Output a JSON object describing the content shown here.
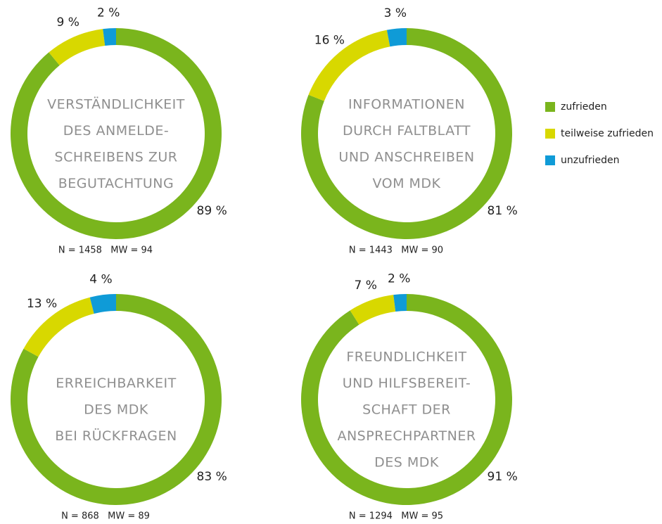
{
  "legend": {
    "labels": [
      "zufrieden",
      "teilweise zufrieden",
      "unzufrieden"
    ],
    "colors": [
      "#7ab51d",
      "#d8d800",
      "#0f9bd7"
    ]
  },
  "chart_data": [
    {
      "type": "pie",
      "donut": true,
      "title": [
        "VERSTÄNDLICHKEIT",
        "DES ANMELDE-",
        "SCHREIBENS ZUR",
        "BEGUTACHTUNG"
      ],
      "values": [
        89,
        9,
        2
      ],
      "value_labels": [
        "89 %",
        "9 %",
        "2 %"
      ],
      "note": "N = 1458   MW = 94"
    },
    {
      "type": "pie",
      "donut": true,
      "title": [
        "INFORMATIONEN",
        "DURCH FALTBLATT",
        "UND ANSCHREIBEN",
        "VOM MDK"
      ],
      "values": [
        81,
        16,
        3
      ],
      "value_labels": [
        "81 %",
        "16 %",
        "3 %"
      ],
      "note": "N = 1443   MW = 90"
    },
    {
      "type": "pie",
      "donut": true,
      "title": [
        "ERREICHBARKEIT",
        "DES MDK",
        "BEI RÜCKFRAGEN"
      ],
      "values": [
        83,
        13,
        4
      ],
      "value_labels": [
        "83 %",
        "13 %",
        "4 %"
      ],
      "note": "N = 868   MW = 89"
    },
    {
      "type": "pie",
      "donut": true,
      "title": [
        "FREUNDLICHKEIT",
        "UND HILFSBEREIT-",
        "SCHAFT DER",
        "ANSPRECHPARTNER",
        "DES MDK"
      ],
      "values": [
        91,
        7,
        2
      ],
      "value_labels": [
        "91 %",
        "7 %",
        "2 %"
      ],
      "note": "N = 1294   MW = 95"
    }
  ]
}
